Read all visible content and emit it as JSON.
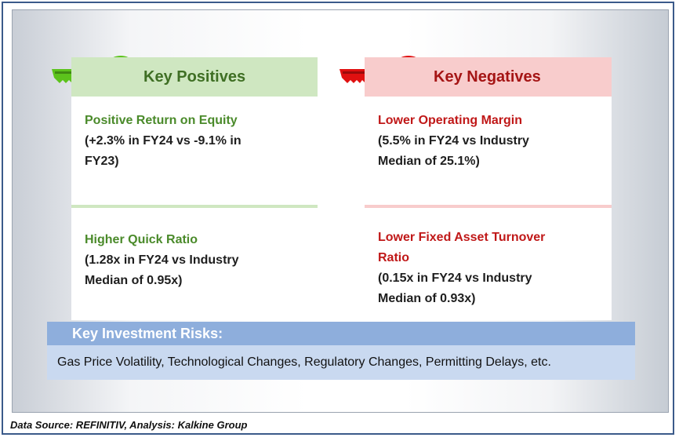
{
  "positives": {
    "heading": "Key Positives",
    "items": [
      {
        "title": "Positive Return on Equity",
        "detail": "(+2.3% in FY24 vs -9.1% in FY23)"
      },
      {
        "title": "Higher Quick Ratio",
        "detail": "(1.28x in FY24 vs Industry Median of 0.95x)"
      }
    ]
  },
  "negatives": {
    "heading": "Key Negatives",
    "items": [
      {
        "title": "Lower Operating Margin",
        "detail": "(5.5% in FY24 vs Industry Median of 25.1%)"
      },
      {
        "title": "Lower Fixed Asset Turnover Ratio",
        "detail": "(0.15x in FY24 vs Industry Median of 0.93x)"
      }
    ]
  },
  "risks": {
    "heading": "Key Investment Risks:",
    "text": "Gas Price Volatility, Technological Changes, Regulatory Changes, Permitting Delays, etc."
  },
  "source": "Data Source: REFINITIV, Analysis: Kalkine Group",
  "colors": {
    "positive": "#4a8a2a",
    "negative": "#c01818",
    "positive_key": "#5cc31c",
    "negative_key": "#e01010",
    "risk_header": "#8eaedc",
    "risk_body": "#c9d9f0"
  },
  "icons": [
    "green-key-icon",
    "red-key-icon"
  ]
}
